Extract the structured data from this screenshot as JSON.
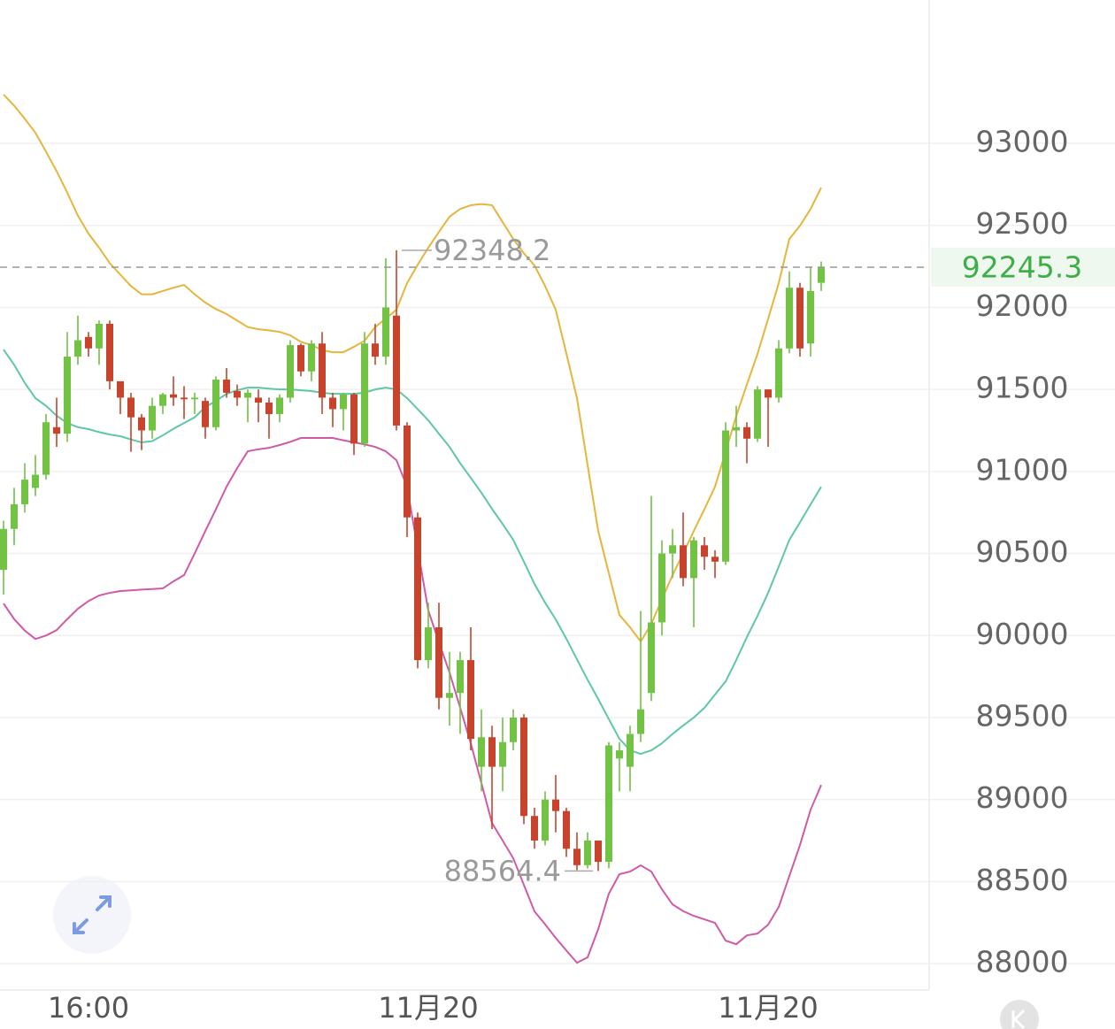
{
  "chart_data": {
    "type": "candlestick",
    "categories": [
      null,
      null,
      null,
      null,
      null,
      null,
      null,
      null,
      "16:00",
      null,
      null,
      null,
      null,
      null,
      null,
      null,
      null,
      null,
      null,
      null,
      null,
      null,
      null,
      null,
      null,
      null,
      null,
      null,
      null,
      null,
      null,
      null,
      null,
      null,
      null,
      null,
      null,
      null,
      null,
      null,
      "11月20",
      null,
      null,
      null,
      null,
      null,
      null,
      null,
      null,
      null,
      null,
      null,
      null,
      null,
      null,
      null,
      null,
      null,
      null,
      null,
      null,
      null,
      null,
      null,
      null,
      null,
      null,
      null,
      null,
      null,
      null,
      null,
      "11月20",
      null,
      null,
      null,
      null,
      null
    ],
    "open": [
      90400,
      90650,
      90800,
      90900,
      90980,
      91270,
      91230,
      91700,
      91820,
      91750,
      91900,
      91550,
      91450,
      91330,
      91250,
      91400,
      91470,
      91450,
      91440,
      91430,
      91270,
      91560,
      91490,
      91450,
      91450,
      91420,
      91350,
      91450,
      91770,
      91610,
      91780,
      91450,
      91380,
      91470,
      91170,
      91780,
      91700,
      91950,
      91280,
      90720,
      89850,
      90050,
      89620,
      89650,
      89850,
      89200,
      89380,
      89200,
      89350,
      89500,
      88900,
      88750,
      89000,
      88930,
      88700,
      88600,
      88750,
      88620,
      89250,
      89200,
      89400,
      89650,
      90080,
      90500,
      90550,
      90350,
      90550,
      90480,
      90450,
      91250,
      91270,
      91200,
      91500,
      91450,
      91750,
      92120,
      91780,
      92150
    ],
    "high": [
      90700,
      90900,
      91050,
      91100,
      91350,
      91450,
      91850,
      91950,
      91850,
      91920,
      91920,
      91550,
      91480,
      91350,
      91450,
      91480,
      91580,
      91520,
      91480,
      91450,
      91580,
      91630,
      91530,
      91500,
      91500,
      91450,
      91470,
      91800,
      91780,
      91800,
      91850,
      91480,
      91480,
      91480,
      91850,
      91900,
      92300,
      92348.2,
      91300,
      90750,
      90200,
      90200,
      89900,
      89900,
      90050,
      89550,
      89450,
      89500,
      89550,
      89520,
      88950,
      89050,
      89150,
      88950,
      88800,
      88800,
      88750,
      89350,
      89350,
      89450,
      90150,
      90850,
      90580,
      90650,
      90750,
      90600,
      90600,
      90520,
      91300,
      91400,
      91300,
      91520,
      91500,
      91800,
      92220,
      92150,
      92250,
      92280
    ],
    "low": [
      90250,
      90550,
      90750,
      90850,
      90950,
      91150,
      91180,
      91650,
      91700,
      91650,
      91500,
      91350,
      91120,
      91130,
      91200,
      91350,
      91400,
      91320,
      91350,
      91200,
      91250,
      91450,
      91400,
      91300,
      91300,
      91200,
      91300,
      91420,
      91580,
      91550,
      91350,
      91270,
      91250,
      91100,
      91150,
      91650,
      91650,
      91250,
      90600,
      89800,
      89800,
      89550,
      89450,
      89400,
      89300,
      89050,
      88820,
      89050,
      89300,
      88850,
      88700,
      88720,
      88800,
      88650,
      88570,
      88580,
      88564.4,
      88580,
      89050,
      89050,
      89350,
      89600,
      90000,
      90350,
      90300,
      90050,
      90400,
      90350,
      90430,
      91150,
      91050,
      91180,
      91150,
      91420,
      91720,
      91700,
      91700,
      92100
    ],
    "close": [
      90650,
      90800,
      90950,
      90980,
      91300,
      91230,
      91700,
      91800,
      91750,
      91900,
      91550,
      91450,
      91330,
      91250,
      91400,
      91470,
      91450,
      91440,
      91450,
      91270,
      91560,
      91480,
      91450,
      91480,
      91420,
      91350,
      91450,
      91770,
      91610,
      91780,
      91450,
      91380,
      91470,
      91170,
      91780,
      91700,
      92000,
      91280,
      90720,
      89850,
      90050,
      89620,
      89650,
      89850,
      89370,
      89380,
      89200,
      89350,
      89500,
      88900,
      88750,
      89000,
      88930,
      88700,
      88600,
      88750,
      88620,
      89330,
      89300,
      89400,
      89550,
      90080,
      90500,
      90550,
      90350,
      90580,
      90480,
      90450,
      91250,
      91270,
      91200,
      91500,
      91450,
      91750,
      92120,
      91750,
      92100,
      92245.3
    ],
    "up_color": "#72c244",
    "down_color": "#c8432b",
    "series": [
      {
        "color": "#e6b53c",
        "values": [
          93297,
          93230,
          93150,
          93065,
          92950,
          92830,
          92700,
          92560,
          92450,
          92364,
          92270,
          92200,
          92130,
          92080,
          92080,
          92100,
          92120,
          92137,
          92080,
          92030,
          91990,
          91960,
          91920,
          91880,
          91867,
          91860,
          91851,
          91830,
          91790,
          91770,
          91740,
          91727,
          91727,
          91760,
          91797,
          91880,
          91932,
          91986,
          92148,
          92260,
          92364,
          92460,
          92553,
          92600,
          92623,
          92630,
          92623,
          92520,
          92417,
          92330,
          92256,
          92130,
          91986,
          91720,
          91447,
          91040,
          90637,
          90380,
          90125,
          90050,
          89963,
          90071,
          90220,
          90368,
          90500,
          90637,
          90770,
          90907,
          91120,
          91339,
          91530,
          91716,
          91930,
          92148,
          92417,
          92498,
          92600,
          92730
        ]
      },
      {
        "color": "#5ec7a6",
        "values": [
          91743,
          91650,
          91540,
          91447,
          91400,
          91340,
          91295,
          91270,
          91258,
          91240,
          91225,
          91215,
          91195,
          91177,
          91185,
          91220,
          91260,
          91295,
          91330,
          91393,
          91430,
          91473,
          91495,
          91511,
          91511,
          91505,
          91500,
          91500,
          91495,
          91490,
          91480,
          91473,
          91473,
          91473,
          91480,
          91500,
          91511,
          91500,
          91447,
          91380,
          91312,
          91230,
          91150,
          91050,
          90961,
          90870,
          90772,
          90680,
          90583,
          90450,
          90314,
          90200,
          90098,
          89980,
          89855,
          89730,
          89613,
          89490,
          89370,
          89300,
          89278,
          89300,
          89343,
          89400,
          89451,
          89500,
          89559,
          89640,
          89720,
          89850,
          89990,
          90120,
          90260,
          90420,
          90583,
          90690,
          90799,
          90907
        ]
      },
      {
        "color": "#d05aa6",
        "values": [
          90195,
          90100,
          90030,
          89979,
          90000,
          90033,
          90100,
          90163,
          90210,
          90244,
          90260,
          90271,
          90275,
          90280,
          90283,
          90287,
          90330,
          90368,
          90500,
          90637,
          90770,
          90907,
          91020,
          91123,
          91135,
          91144,
          91161,
          91180,
          91204,
          91204,
          91204,
          91204,
          91190,
          91177,
          91165,
          91150,
          91123,
          91069,
          90907,
          90530,
          90152,
          89960,
          89774,
          89560,
          89343,
          89100,
          88857,
          88750,
          88642,
          88480,
          88318,
          88240,
          88156,
          88080,
          88005,
          88038,
          88210,
          88426,
          88545,
          88561,
          88599,
          88561,
          88453,
          88361,
          88320,
          88291,
          88270,
          88248,
          88140,
          88118,
          88172,
          88183,
          88237,
          88345,
          88534,
          88723,
          88938,
          89089
        ]
      }
    ],
    "ylim": [
      87844,
      93874
    ],
    "yticks": [
      88000,
      88500,
      89000,
      89500,
      90000,
      90500,
      91000,
      91500,
      92000,
      92500,
      93000
    ],
    "grid": true,
    "last_price_color": "#3fae48"
  }
}
